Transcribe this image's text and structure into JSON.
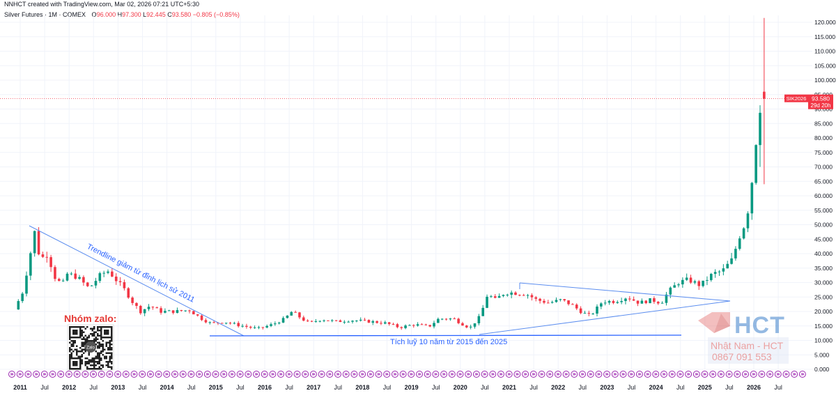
{
  "header": {
    "credit": "NNHCT created with TradingView.com, Mar 02, 2026 07:21 UTC+5:30",
    "symbol": "Silver Futures · 1M · COMEX",
    "o_label": "O",
    "o_value": "96.000",
    "h_label": "H",
    "h_value": "97.300",
    "l_label": "L",
    "l_value": "92.445",
    "c_label": "C",
    "c_value": "93.580",
    "change": "−0.805 (−0.85%)"
  },
  "price_tag": {
    "symbol": "SIK2026",
    "price": "93.580",
    "countdown": "29d 20h"
  },
  "annotations": {
    "trendline_text": "Trendline giảm từ đỉnh lịch sử 2011",
    "accumulation_text": "Tích luỹ 10 năm từ 2015 đến 2025",
    "zalo_text": "Nhóm zalo:",
    "qr_center": "Zalo"
  },
  "watermark": {
    "logo_text": "HCT",
    "name": "Nhật Nam - HCT",
    "phone": "0867 091 553"
  },
  "colors": {
    "up": "#089981",
    "down": "#f23645",
    "line": "#2962ff",
    "grid": "#f0f3fa",
    "text": "#131722",
    "event": "#9c27b0"
  },
  "chart_data": {
    "type": "candlestick",
    "title": "Silver Futures · 1M · COMEX",
    "ylim": [
      0,
      122
    ],
    "y_ticks": [
      "0.000",
      "5.000",
      "10.000",
      "15.000",
      "20.000",
      "25.000",
      "30.000",
      "35.000",
      "40.000",
      "45.000",
      "50.000",
      "55.000",
      "60.000",
      "65.000",
      "70.000",
      "75.000",
      "80.000",
      "85.000",
      "90.000",
      "95.000",
      "100.000",
      "105.000",
      "110.000",
      "115.000",
      "120.000"
    ],
    "x_ticks": [
      "2011",
      "Jul",
      "2012",
      "Jul",
      "2013",
      "Jul",
      "2014",
      "Jul",
      "2015",
      "Jul",
      "2016",
      "Jul",
      "2017",
      "Jul",
      "2018",
      "Jul",
      "2019",
      "Jul",
      "2020",
      "Jul",
      "2021",
      "Jul",
      "2022",
      "Jul",
      "2023",
      "Jul",
      "2024",
      "Jul",
      "2025",
      "Jul",
      "2026",
      "Jul"
    ],
    "x_start": 2011.0,
    "x_end": 2026.75,
    "current_price": 93.58,
    "yearly_path": [
      [
        2010.9,
        20.0
      ],
      [
        2011.1,
        27.0
      ],
      [
        2011.25,
        40.0
      ],
      [
        2011.33,
        48.0
      ],
      [
        2011.45,
        38.0
      ],
      [
        2011.6,
        40.0
      ],
      [
        2011.75,
        32.0
      ],
      [
        2011.9,
        29.0
      ],
      [
        2012.0,
        33.0
      ],
      [
        2012.2,
        32.0
      ],
      [
        2012.45,
        28.0
      ],
      [
        2012.7,
        33.0
      ],
      [
        2012.85,
        34.0
      ],
      [
        2013.0,
        31.0
      ],
      [
        2013.2,
        27.0
      ],
      [
        2013.35,
        23.0
      ],
      [
        2013.5,
        20.0
      ],
      [
        2013.7,
        22.0
      ],
      [
        2013.9,
        20.0
      ],
      [
        2014.2,
        20.0
      ],
      [
        2014.5,
        20.5
      ],
      [
        2014.75,
        17.5
      ],
      [
        2014.95,
        15.8
      ],
      [
        2015.2,
        16.5
      ],
      [
        2015.5,
        15.3
      ],
      [
        2015.9,
        14.0
      ],
      [
        2016.2,
        15.5
      ],
      [
        2016.45,
        17.5
      ],
      [
        2016.6,
        20.0
      ],
      [
        2016.8,
        17.5
      ],
      [
        2016.95,
        16.0
      ],
      [
        2017.2,
        17.3
      ],
      [
        2017.5,
        16.5
      ],
      [
        2017.8,
        17.0
      ],
      [
        2018.2,
        16.5
      ],
      [
        2018.5,
        16.0
      ],
      [
        2018.8,
        14.5
      ],
      [
        2019.1,
        15.5
      ],
      [
        2019.4,
        14.8
      ],
      [
        2019.6,
        17.5
      ],
      [
        2019.9,
        17.5
      ],
      [
        2020.15,
        15.0
      ],
      [
        2020.25,
        14.5
      ],
      [
        2020.45,
        18.5
      ],
      [
        2020.6,
        26.0
      ],
      [
        2020.75,
        24.0
      ],
      [
        2020.95,
        26.5
      ],
      [
        2021.1,
        26.5
      ],
      [
        2021.4,
        26.0
      ],
      [
        2021.6,
        24.0
      ],
      [
        2021.85,
        23.0
      ],
      [
        2022.1,
        24.0
      ],
      [
        2022.3,
        22.5
      ],
      [
        2022.55,
        19.5
      ],
      [
        2022.7,
        18.5
      ],
      [
        2022.95,
        23.5
      ],
      [
        2023.2,
        23.5
      ],
      [
        2023.45,
        25.0
      ],
      [
        2023.7,
        23.0
      ],
      [
        2023.95,
        24.0
      ],
      [
        2024.15,
        23.0
      ],
      [
        2024.3,
        27.0
      ],
      [
        2024.5,
        30.0
      ],
      [
        2024.7,
        31.0
      ],
      [
        2024.95,
        29.0
      ],
      [
        2025.2,
        33.0
      ],
      [
        2025.4,
        34.0
      ],
      [
        2025.6,
        38.0
      ],
      [
        2025.75,
        46.0
      ],
      [
        2025.85,
        50.0
      ],
      [
        2025.95,
        57.0
      ],
      [
        2026.05,
        72.0
      ],
      [
        2026.12,
        85.0
      ],
      [
        2026.2,
        94.0
      ],
      [
        2026.28,
        93.58
      ]
    ],
    "event_markers_per_year": 1
  }
}
